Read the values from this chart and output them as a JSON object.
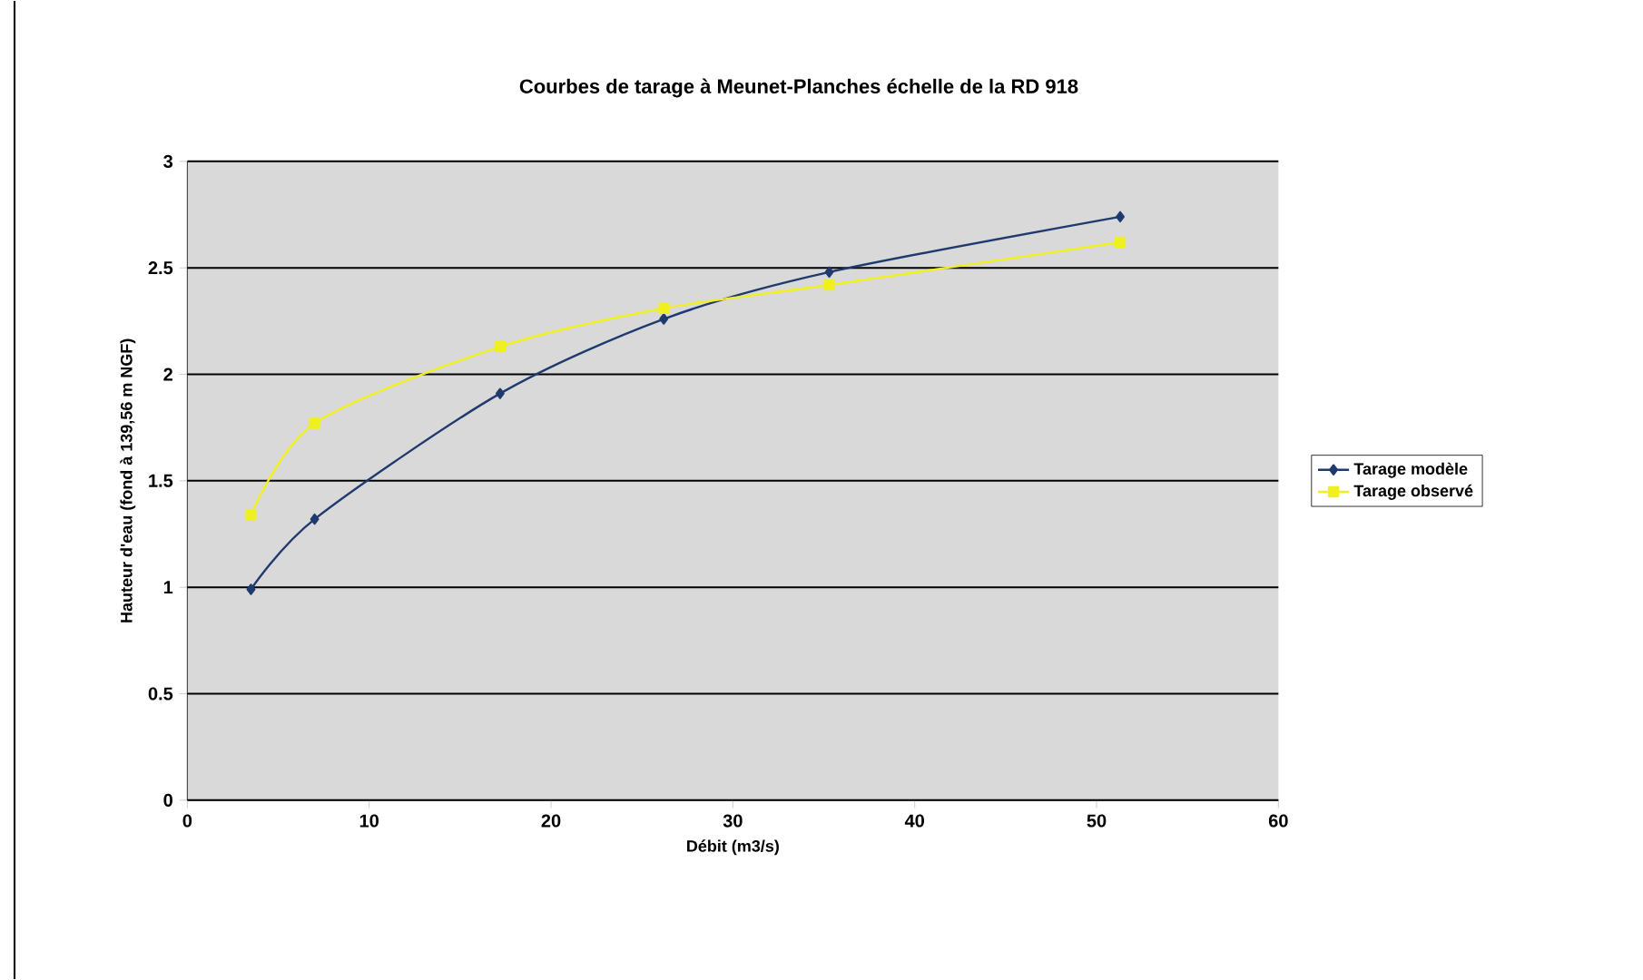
{
  "chart_data": {
    "type": "line",
    "title": "Courbes de tarage à Meunet-Planches échelle de la RD 918",
    "xlabel": "Débit (m3/s)",
    "ylabel": "Hauteur d'eau (fond à 139,56 m NGF)",
    "series": [
      {
        "name": "Tarage modèle",
        "color": "#1f3a6e",
        "marker": "diamond",
        "x": [
          3.5,
          7,
          17.2,
          26.2,
          35.3,
          51.3
        ],
        "values": [
          0.99,
          1.32,
          1.91,
          2.26,
          2.48,
          2.74
        ]
      },
      {
        "name": "Tarage observé",
        "color": "#f0f020",
        "marker": "square",
        "x": [
          3.5,
          7,
          17.2,
          26.2,
          35.3,
          51.3
        ],
        "values": [
          1.34,
          1.77,
          2.13,
          2.31,
          2.42,
          2.62
        ]
      }
    ],
    "xlim": [
      0,
      60
    ],
    "xticks": [
      0,
      10,
      20,
      30,
      40,
      50,
      60
    ],
    "ylim": [
      0,
      3
    ],
    "yticks": [
      0,
      0.5,
      1,
      1.5,
      2,
      2.5,
      3
    ],
    "grid": "y",
    "legend": "right",
    "line_style": "solid"
  }
}
